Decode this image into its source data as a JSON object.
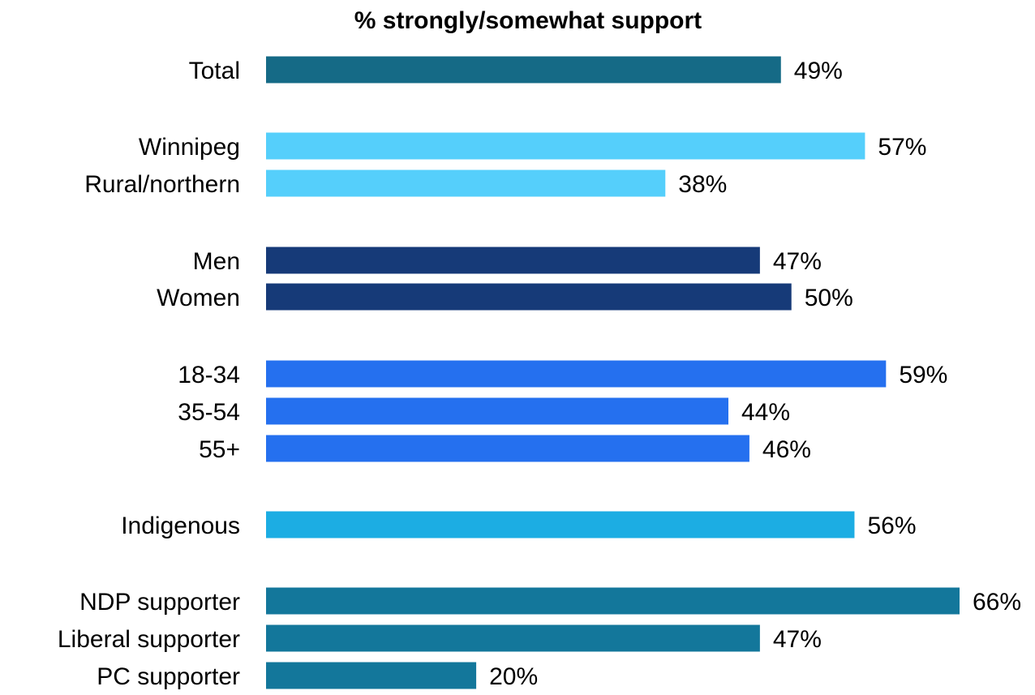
{
  "chart_data": {
    "type": "bar",
    "orientation": "horizontal",
    "title": "% strongly/somewhat support",
    "xlabel": "",
    "ylabel": "",
    "xlim": [
      0,
      66
    ],
    "grid": false,
    "legend": "none",
    "value_suffix": "%",
    "categories": [
      "Total",
      "Winnipeg",
      "Rural/northern",
      "Men",
      "Women",
      "18-34",
      "35-54",
      "55+",
      "Indigenous",
      "NDP supporter",
      "Liberal supporter",
      "PC supporter"
    ],
    "values": [
      49,
      57,
      38,
      47,
      50,
      59,
      44,
      46,
      56,
      66,
      47,
      20
    ],
    "data_labels": [
      "49%",
      "57%",
      "38%",
      "47%",
      "50%",
      "59%",
      "44%",
      "46%",
      "56%",
      "66%",
      "47%",
      "20%"
    ],
    "groups": [
      {
        "categories": [
          "Total"
        ],
        "color": "#156a86"
      },
      {
        "categories": [
          "Winnipeg",
          "Rural/northern"
        ],
        "color": "#55cffb"
      },
      {
        "categories": [
          "Men",
          "Women"
        ],
        "color": "#163a78"
      },
      {
        "categories": [
          "18-34",
          "35-54",
          "55+"
        ],
        "color": "#2570ef"
      },
      {
        "categories": [
          "Indigenous"
        ],
        "color": "#1cade3"
      },
      {
        "categories": [
          "NDP supporter",
          "Liberal supporter",
          "PC supporter"
        ],
        "color": "#13779b"
      }
    ]
  }
}
